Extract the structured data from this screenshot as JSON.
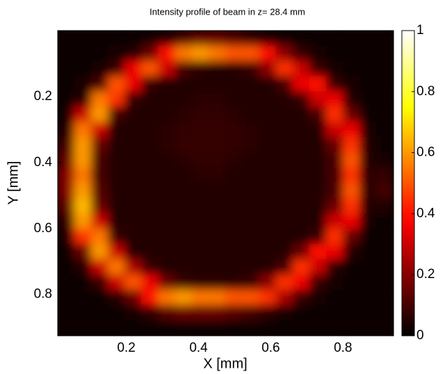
{
  "chart_data": {
    "type": "heatmap",
    "title": "Intensity profile of beam in z= 28.4 mm",
    "xlabel": "X [mm]",
    "ylabel": "Y [mm]",
    "colormap": "hot",
    "yreverse": true,
    "xlim": [
      0.01,
      0.94
    ],
    "ylim": [
      0,
      0.925
    ],
    "xticks": [
      0.2,
      0.4,
      0.6,
      0.8
    ],
    "yticks": [
      0.2,
      0.4,
      0.6,
      0.8
    ],
    "clim": [
      0,
      1
    ],
    "cticks": [
      0,
      0.2,
      0.4,
      0.6,
      0.8,
      1
    ],
    "z": [
      [
        0.02,
        0.02,
        0.02,
        0.02,
        0.02,
        0.03,
        0.05,
        0.1,
        0.15,
        0.15,
        0.12,
        0.08,
        0.05,
        0.03,
        0.02,
        0.02,
        0.02,
        0.02,
        0.02,
        0.02
      ],
      [
        0.02,
        0.02,
        0.02,
        0.03,
        0.05,
        0.15,
        0.4,
        0.55,
        0.6,
        0.55,
        0.5,
        0.5,
        0.4,
        0.2,
        0.08,
        0.03,
        0.02,
        0.02,
        0.02,
        0.02
      ],
      [
        0.02,
        0.02,
        0.03,
        0.08,
        0.35,
        0.5,
        0.3,
        0.1,
        0.06,
        0.05,
        0.05,
        0.08,
        0.2,
        0.45,
        0.3,
        0.08,
        0.03,
        0.02,
        0.02,
        0.02
      ],
      [
        0.02,
        0.03,
        0.1,
        0.5,
        0.35,
        0.08,
        0.05,
        0.05,
        0.05,
        0.05,
        0.05,
        0.05,
        0.05,
        0.1,
        0.35,
        0.4,
        0.08,
        0.03,
        0.02,
        0.02
      ],
      [
        0.02,
        0.05,
        0.55,
        0.45,
        0.08,
        0.05,
        0.05,
        0.05,
        0.06,
        0.06,
        0.05,
        0.05,
        0.05,
        0.05,
        0.08,
        0.3,
        0.35,
        0.05,
        0.02,
        0.02
      ],
      [
        0.03,
        0.3,
        0.6,
        0.1,
        0.05,
        0.05,
        0.05,
        0.06,
        0.07,
        0.07,
        0.06,
        0.05,
        0.05,
        0.05,
        0.05,
        0.1,
        0.45,
        0.15,
        0.02,
        0.02
      ],
      [
        0.05,
        0.55,
        0.3,
        0.05,
        0.05,
        0.05,
        0.06,
        0.07,
        0.08,
        0.08,
        0.07,
        0.06,
        0.05,
        0.05,
        0.05,
        0.05,
        0.3,
        0.35,
        0.03,
        0.02
      ],
      [
        0.1,
        0.6,
        0.15,
        0.05,
        0.05,
        0.05,
        0.06,
        0.08,
        0.08,
        0.08,
        0.07,
        0.06,
        0.05,
        0.05,
        0.05,
        0.05,
        0.15,
        0.45,
        0.05,
        0.02
      ],
      [
        0.15,
        0.6,
        0.1,
        0.05,
        0.05,
        0.05,
        0.05,
        0.06,
        0.07,
        0.07,
        0.06,
        0.05,
        0.05,
        0.05,
        0.05,
        0.05,
        0.1,
        0.5,
        0.05,
        0.03
      ],
      [
        0.2,
        0.55,
        0.1,
        0.05,
        0.05,
        0.05,
        0.05,
        0.05,
        0.06,
        0.06,
        0.05,
        0.05,
        0.05,
        0.05,
        0.05,
        0.05,
        0.1,
        0.45,
        0.06,
        0.08
      ],
      [
        0.2,
        0.6,
        0.12,
        0.05,
        0.05,
        0.05,
        0.05,
        0.05,
        0.05,
        0.05,
        0.05,
        0.05,
        0.05,
        0.05,
        0.05,
        0.05,
        0.1,
        0.5,
        0.06,
        0.1
      ],
      [
        0.15,
        0.65,
        0.15,
        0.05,
        0.05,
        0.05,
        0.05,
        0.05,
        0.05,
        0.05,
        0.05,
        0.05,
        0.05,
        0.05,
        0.05,
        0.05,
        0.15,
        0.45,
        0.05,
        0.05
      ],
      [
        0.08,
        0.6,
        0.3,
        0.05,
        0.05,
        0.05,
        0.05,
        0.05,
        0.05,
        0.05,
        0.05,
        0.05,
        0.05,
        0.05,
        0.05,
        0.05,
        0.3,
        0.35,
        0.03,
        0.02
      ],
      [
        0.05,
        0.45,
        0.55,
        0.08,
        0.05,
        0.05,
        0.05,
        0.05,
        0.05,
        0.05,
        0.05,
        0.05,
        0.05,
        0.05,
        0.05,
        0.08,
        0.45,
        0.15,
        0.02,
        0.02
      ],
      [
        0.02,
        0.15,
        0.6,
        0.3,
        0.05,
        0.05,
        0.05,
        0.05,
        0.05,
        0.05,
        0.05,
        0.05,
        0.05,
        0.05,
        0.15,
        0.4,
        0.35,
        0.05,
        0.02,
        0.02
      ],
      [
        0.02,
        0.05,
        0.3,
        0.55,
        0.25,
        0.08,
        0.05,
        0.05,
        0.05,
        0.05,
        0.05,
        0.05,
        0.05,
        0.1,
        0.45,
        0.3,
        0.05,
        0.02,
        0.02,
        0.02
      ],
      [
        0.02,
        0.02,
        0.08,
        0.3,
        0.5,
        0.35,
        0.15,
        0.08,
        0.06,
        0.06,
        0.06,
        0.08,
        0.2,
        0.45,
        0.35,
        0.08,
        0.03,
        0.02,
        0.02,
        0.02
      ],
      [
        0.02,
        0.02,
        0.02,
        0.05,
        0.15,
        0.4,
        0.55,
        0.6,
        0.55,
        0.55,
        0.5,
        0.5,
        0.45,
        0.25,
        0.08,
        0.03,
        0.02,
        0.02,
        0.02,
        0.02
      ],
      [
        0.02,
        0.02,
        0.02,
        0.02,
        0.03,
        0.06,
        0.12,
        0.15,
        0.15,
        0.15,
        0.12,
        0.1,
        0.06,
        0.03,
        0.02,
        0.02,
        0.02,
        0.02,
        0.02,
        0.02
      ],
      [
        0.02,
        0.02,
        0.02,
        0.02,
        0.02,
        0.02,
        0.02,
        0.02,
        0.02,
        0.02,
        0.02,
        0.02,
        0.02,
        0.02,
        0.02,
        0.02,
        0.02,
        0.02,
        0.02,
        0.02
      ]
    ]
  }
}
